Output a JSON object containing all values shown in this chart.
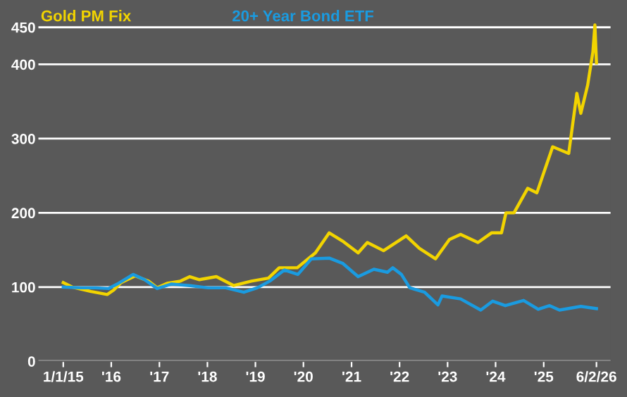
{
  "chart_data": {
    "type": "line",
    "xlim": [
      "2014-06-20",
      "2026-05-30"
    ],
    "ylim": [
      0,
      460
    ],
    "xticks": [
      {
        "value": "2015-01-01",
        "label": "1/1/15"
      },
      {
        "value": "2016-01-01",
        "label": "'16"
      },
      {
        "value": "2017-01-01",
        "label": "'17"
      },
      {
        "value": "2018-01-01",
        "label": "'18"
      },
      {
        "value": "2019-01-01",
        "label": "'19"
      },
      {
        "value": "2020-01-01",
        "label": "'20"
      },
      {
        "value": "2021-01-01",
        "label": "'21"
      },
      {
        "value": "2022-01-01",
        "label": "'22"
      },
      {
        "value": "2023-01-01",
        "label": "'23"
      },
      {
        "value": "2024-01-01",
        "label": "'24"
      },
      {
        "value": "2025-01-01",
        "label": "'25"
      },
      {
        "value": "2026-02-06",
        "label": "6/2/26"
      }
    ],
    "yticks": [
      0,
      100,
      200,
      300,
      400,
      450
    ],
    "grid": "y",
    "marker": "none",
    "line_style": "solid",
    "series": [
      {
        "name": "Gold PM Fix",
        "color": "#f2d400",
        "x": [
          "2015-01-01",
          "2015-03-10",
          "2015-08-01",
          "2015-12-01",
          "2016-01-20",
          "2016-03-15",
          "2016-07-01",
          "2016-10-10",
          "2016-12-15",
          "2017-03-01",
          "2017-06-10",
          "2017-08-20",
          "2017-11-01",
          "2018-03-10",
          "2018-07-20",
          "2018-12-01",
          "2019-04-10",
          "2019-07-01",
          "2019-11-15",
          "2020-04-01",
          "2020-07-15",
          "2020-11-01",
          "2021-02-20",
          "2021-05-01",
          "2021-09-01",
          "2022-02-20",
          "2022-06-01",
          "2022-10-01",
          "2023-01-15",
          "2023-04-10",
          "2023-08-20",
          "2023-12-01",
          "2024-02-15",
          "2024-03-20",
          "2024-05-20",
          "2024-09-01",
          "2024-11-10",
          "2025-03-10",
          "2025-07-10",
          "2025-09-10",
          "2025-10-10",
          "2025-12-01",
          "2026-01-10",
          "2026-01-25",
          "2026-02-06"
        ],
        "values": [
          106,
          100,
          94,
          90,
          96,
          106,
          115,
          108,
          99,
          105,
          108,
          114,
          110,
          114,
          102,
          108,
          112,
          126,
          126,
          146,
          173,
          161,
          146,
          160,
          149,
          169,
          152,
          138,
          164,
          171,
          160,
          173,
          173,
          200,
          200,
          233,
          227,
          289,
          280,
          361,
          334,
          372,
          417,
          453,
          402
        ]
      },
      {
        "name": "20+ Year Bond ETF",
        "color": "#1a9be0",
        "x": [
          "2015-01-01",
          "2015-05-15",
          "2015-09-01",
          "2015-12-10",
          "2016-02-15",
          "2016-06-15",
          "2016-09-10",
          "2016-12-15",
          "2017-04-01",
          "2017-08-20",
          "2018-01-05",
          "2018-05-20",
          "2018-10-05",
          "2019-01-15",
          "2019-04-20",
          "2019-08-10",
          "2019-11-20",
          "2020-03-01",
          "2020-07-15",
          "2020-10-25",
          "2021-02-20",
          "2021-06-20",
          "2021-10-01",
          "2021-11-10",
          "2022-01-15",
          "2022-03-20",
          "2022-07-10",
          "2022-10-20",
          "2022-11-20",
          "2023-04-10",
          "2023-09-10",
          "2023-12-10",
          "2024-03-15",
          "2024-08-01",
          "2024-11-20",
          "2025-02-15",
          "2025-05-01",
          "2025-10-10",
          "2026-02-06"
        ],
        "values": [
          100,
          99,
          99,
          98,
          104,
          117,
          110,
          98,
          104,
          102,
          99,
          99,
          93,
          99,
          108,
          123,
          117,
          138,
          139,
          132,
          114,
          124,
          120,
          126,
          117,
          99,
          93,
          76,
          88,
          84,
          69,
          81,
          75,
          82,
          70,
          75,
          69,
          74,
          71
        ]
      }
    ]
  }
}
